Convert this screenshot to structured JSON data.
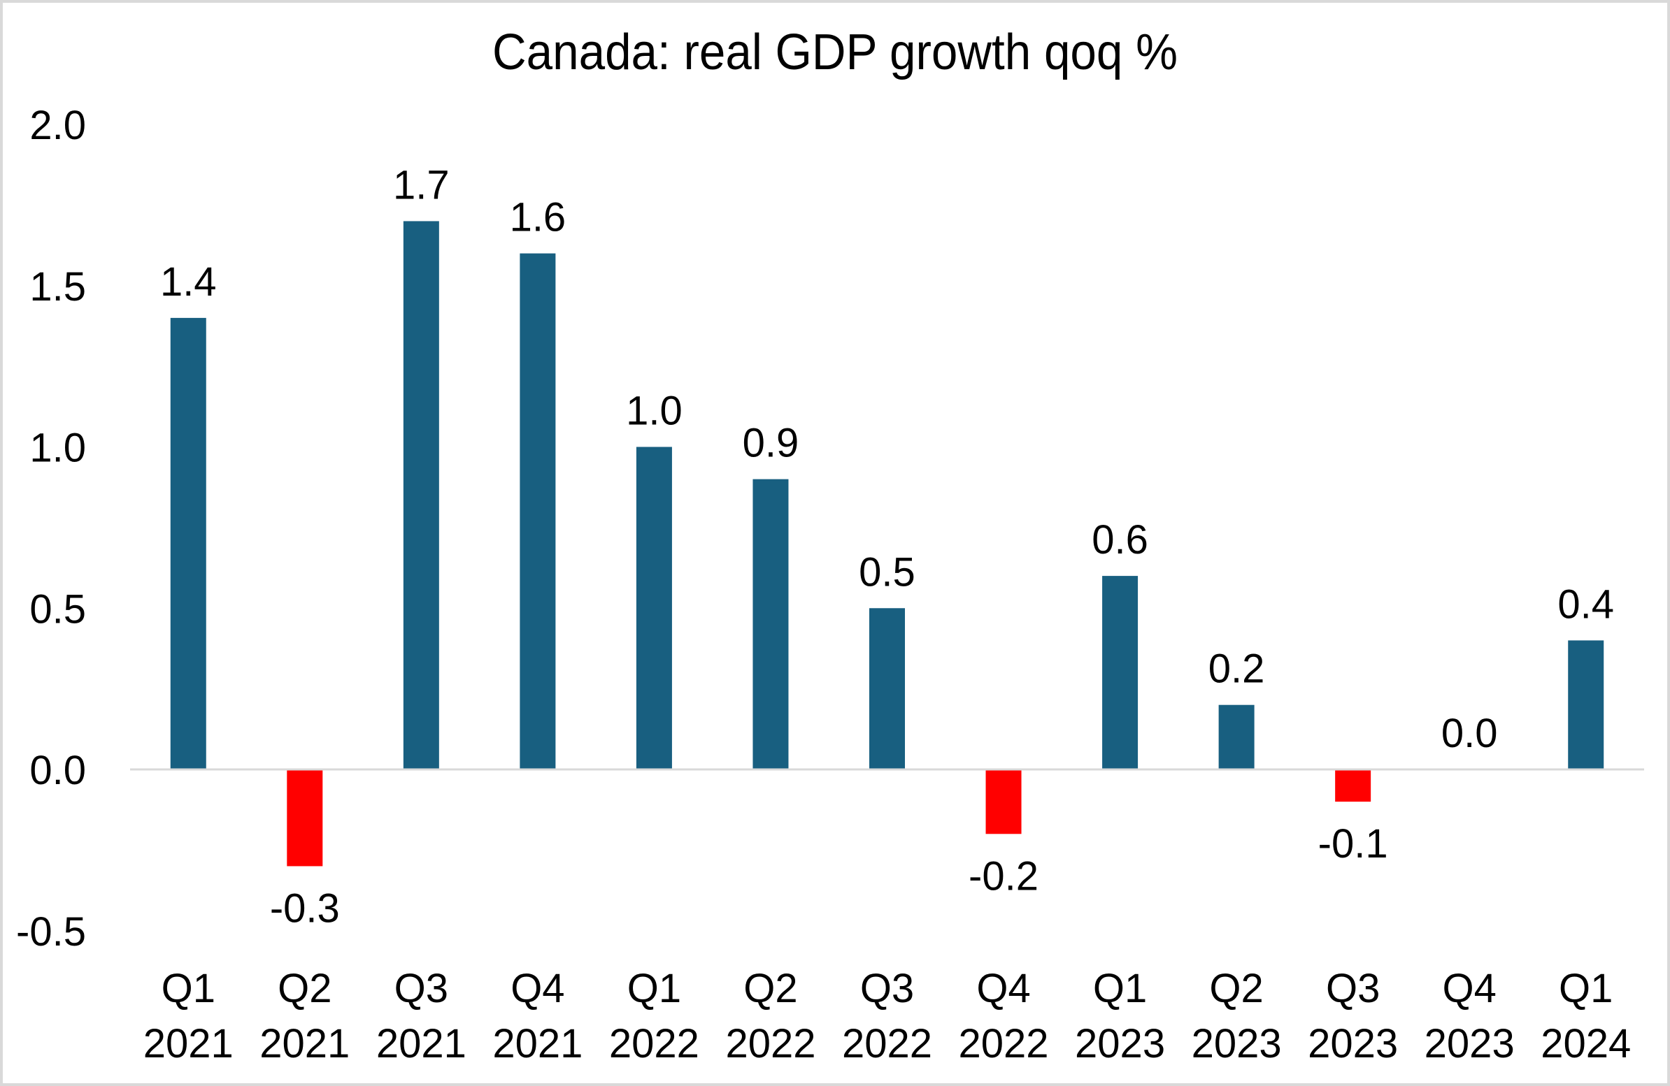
{
  "chart_data": {
    "type": "bar",
    "title": "Canada: real GDP growth qoq %",
    "xlabel": "",
    "ylabel": "",
    "ylim": [
      -0.5,
      2.0
    ],
    "yticks": [
      2.0,
      1.5,
      1.0,
      0.5,
      0.0,
      -0.5
    ],
    "ytick_labels": [
      "2.0",
      "1.5",
      "1.0",
      "0.5",
      "0.0",
      "-0.5"
    ],
    "grid": false,
    "legend": "none",
    "categories": [
      [
        "Q1",
        "2021"
      ],
      [
        "Q2",
        "2021"
      ],
      [
        "Q3",
        "2021"
      ],
      [
        "Q4",
        "2021"
      ],
      [
        "Q1",
        "2022"
      ],
      [
        "Q2",
        "2022"
      ],
      [
        "Q3",
        "2022"
      ],
      [
        "Q4",
        "2022"
      ],
      [
        "Q1",
        "2023"
      ],
      [
        "Q2",
        "2023"
      ],
      [
        "Q3",
        "2023"
      ],
      [
        "Q4",
        "2023"
      ],
      [
        "Q1",
        "2024"
      ]
    ],
    "series": [
      {
        "name": "Real GDP growth qoq %",
        "values": [
          1.4,
          -0.3,
          1.7,
          1.6,
          1.0,
          0.9,
          0.5,
          -0.2,
          0.6,
          0.2,
          -0.1,
          0.0,
          0.4
        ],
        "data_labels": [
          "1.4",
          "-0.3",
          "1.7",
          "1.6",
          "1.0",
          "0.9",
          "0.5",
          "-0.2",
          "0.6",
          "0.2",
          "-0.1",
          "0.0",
          "0.4"
        ]
      }
    ],
    "colors": {
      "positive": "#185f80",
      "negative": "#ff0000",
      "zero_line": "#d9d9d9",
      "text": "#000000"
    }
  }
}
